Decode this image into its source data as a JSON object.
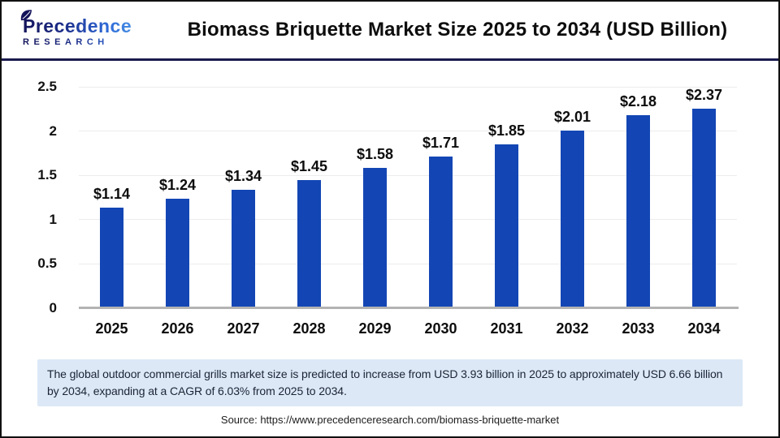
{
  "header": {
    "logo_line1": "Precedence",
    "logo_line2": "RESEARCH",
    "title": "Biomass Briquette Market Size 2025 to 2034 (USD Billion)"
  },
  "chart_data": {
    "type": "bar",
    "title": "Biomass Briquette Market Size 2025 to 2034 (USD Billion)",
    "categories": [
      "2025",
      "2026",
      "2027",
      "2028",
      "2029",
      "2030",
      "2031",
      "2032",
      "2033",
      "2034"
    ],
    "values": [
      1.14,
      1.24,
      1.34,
      1.45,
      1.58,
      1.71,
      1.85,
      2.01,
      2.18,
      2.37
    ],
    "value_labels": [
      "$1.14",
      "$1.24",
      "$1.34",
      "$1.45",
      "$1.58",
      "$1.71",
      "$1.85",
      "$2.01",
      "$2.18",
      "$2.37"
    ],
    "xlabel": "",
    "ylabel": "",
    "ylim": [
      0,
      2.5
    ],
    "y_ticks": [
      0,
      0.5,
      1,
      1.5,
      2,
      2.5
    ],
    "y_tick_labels": [
      "0",
      "0.5",
      "1",
      "1.5",
      "2",
      "2.5"
    ],
    "grid": true,
    "legend": false,
    "bar_color": "#1346b4"
  },
  "summary": {
    "text": "The global outdoor commercial grills market size is predicted to increase from USD 3.93 billion in 2025 to approximately USD 6.66 billion by 2034, expanding at a CAGR of 6.03% from 2025 to 2034."
  },
  "source": {
    "text": "Source: https://www.precedenceresearch.com/biomass-briquette-market"
  },
  "colors": {
    "bar": "#1346b4",
    "header_divider": "#1a1a4e",
    "grid": "#ececec",
    "axis": "#b3b3b3",
    "summary_bg": "#dce8f6"
  }
}
